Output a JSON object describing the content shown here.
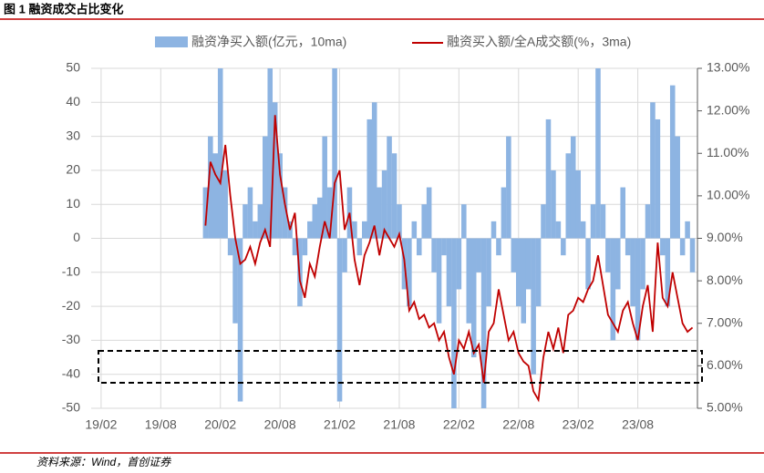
{
  "header": "图 1 融资成交占比变化",
  "source": "资料来源：Wind，首创证券",
  "chart_data": {
    "type": "combo",
    "x": [
      10.5,
      11,
      11.5,
      12,
      12.5,
      13,
      13.5,
      14,
      14.5,
      15,
      15.5,
      16,
      16.5,
      17,
      17.5,
      18,
      18.5,
      19,
      19.5,
      20,
      20.5,
      21,
      21.5,
      22,
      22.5,
      23,
      23.5,
      24,
      24.5,
      25,
      25.5,
      26,
      26.5,
      27,
      27.5,
      28,
      28.5,
      29,
      29.5,
      30,
      30.5,
      31,
      31.5,
      32,
      32.5,
      33,
      33.5,
      34,
      34.5,
      35,
      35.5,
      36,
      36.5,
      37,
      37.5,
      38,
      38.5,
      39,
      39.5,
      40,
      40.5,
      41,
      41.5,
      42,
      42.5,
      43,
      43.5,
      44,
      44.5,
      45,
      45.5,
      46,
      46.5,
      47,
      47.5,
      48,
      48.5,
      49,
      49.5,
      50,
      50.5,
      51,
      51.5,
      52,
      52.5,
      53,
      53.5,
      54,
      54.5,
      55,
      55.5,
      56,
      56.5,
      57,
      57.5,
      58,
      58.5,
      59,
      59.5
    ],
    "series": [
      {
        "name": "融资净买入额(亿元，10ma)",
        "type": "bar",
        "color": "#8db4e2",
        "values": [
          15,
          30,
          25,
          50,
          20,
          -5,
          -25,
          -48,
          10,
          15,
          5,
          10,
          30,
          50,
          40,
          25,
          15,
          5,
          -5,
          -20,
          -5,
          5,
          10,
          12,
          30,
          15,
          50,
          -48,
          -10,
          15,
          5,
          -5,
          5,
          35,
          40,
          15,
          20,
          30,
          25,
          10,
          -15,
          -20,
          5,
          -5,
          10,
          15,
          -10,
          -25,
          -5,
          -20,
          -50,
          -15,
          10,
          -25,
          -35,
          -10,
          -50,
          -20,
          5,
          -5,
          15,
          30,
          -10,
          -20,
          -25,
          -15,
          -40,
          -20,
          10,
          35,
          20,
          5,
          -5,
          25,
          30,
          20,
          5,
          -15,
          10,
          50,
          10,
          -10,
          -30,
          -15,
          15,
          -5,
          -20,
          -30,
          -15,
          10,
          40,
          35,
          -5,
          -20,
          45,
          30,
          -5,
          5,
          -10
        ]
      },
      {
        "name": "融资买入额/全A成交额(%，3ma)",
        "type": "line",
        "axis": "y2",
        "color": "#c00000",
        "values": [
          9.3,
          10.8,
          10.5,
          10.3,
          11.2,
          10.0,
          9.0,
          8.4,
          8.5,
          8.8,
          8.4,
          8.9,
          9.2,
          8.8,
          11.9,
          10.5,
          9.8,
          9.2,
          9.6,
          8.0,
          7.6,
          8.4,
          8.1,
          8.8,
          9.4,
          9.0,
          10.3,
          10.6,
          9.2,
          9.6,
          8.5,
          7.9,
          8.6,
          8.9,
          9.3,
          8.6,
          9.2,
          9.0,
          8.8,
          9.1,
          8.5,
          7.3,
          7.5,
          7.1,
          7.2,
          6.9,
          7.0,
          6.6,
          6.8,
          6.2,
          5.8,
          6.6,
          6.4,
          6.8,
          6.3,
          6.5,
          5.6,
          6.8,
          7.0,
          7.8,
          7.2,
          6.6,
          6.8,
          6.3,
          6.1,
          6.0,
          5.4,
          5.2,
          6.2,
          6.8,
          6.4,
          6.9,
          6.3,
          7.2,
          7.3,
          7.6,
          7.5,
          7.8,
          8.0,
          8.6,
          7.9,
          7.2,
          7.0,
          6.8,
          7.3,
          7.5,
          7.0,
          6.6,
          7.4,
          7.9,
          6.8,
          8.9,
          7.6,
          7.4,
          8.2,
          7.6,
          7.0,
          6.8,
          6.9
        ]
      }
    ],
    "xlim": [
      -1,
      60
    ],
    "xticks": [
      {
        "value": 0,
        "label": "19/02"
      },
      {
        "value": 6,
        "label": "19/08"
      },
      {
        "value": 12,
        "label": "20/02"
      },
      {
        "value": 18,
        "label": "20/08"
      },
      {
        "value": 24,
        "label": "21/02"
      },
      {
        "value": 30,
        "label": "21/08"
      },
      {
        "value": 36,
        "label": "22/02"
      },
      {
        "value": 42,
        "label": "22/08"
      },
      {
        "value": 48,
        "label": "23/02"
      },
      {
        "value": 54,
        "label": "23/08"
      }
    ],
    "ylim": [
      -50,
      50
    ],
    "yticks": [
      -50,
      -40,
      -30,
      -20,
      -10,
      0,
      10,
      20,
      30,
      40,
      50
    ],
    "y2lim": [
      5,
      13
    ],
    "y2ticks": [
      {
        "value": 5,
        "label": "5.00%"
      },
      {
        "value": 6,
        "label": "6.00%"
      },
      {
        "value": 7,
        "label": "7.00%"
      },
      {
        "value": 8,
        "label": "8.00%"
      },
      {
        "value": 9,
        "label": "9.00%"
      },
      {
        "value": 10,
        "label": "10.00%"
      },
      {
        "value": 11,
        "label": "11.00%"
      },
      {
        "value": 12,
        "label": "12.00%"
      },
      {
        "value": 13,
        "label": "13.00%"
      }
    ],
    "grid": true
  }
}
